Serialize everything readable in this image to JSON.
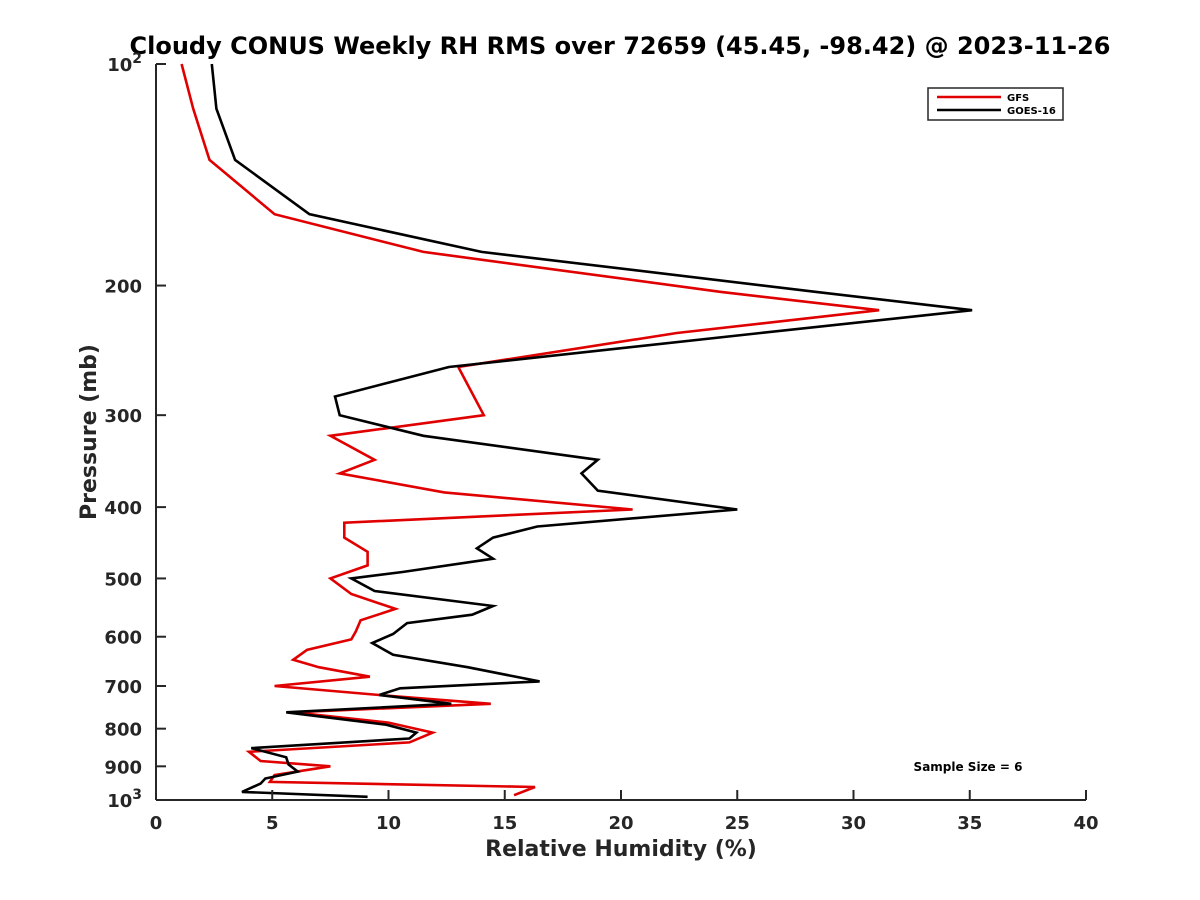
{
  "chart_data": {
    "type": "line",
    "title": "Cloudy CONUS Weekly RH RMS over 72659 (45.45, -98.42) @ 2023-11-26",
    "xlabel": "Relative Humidity (%)",
    "ylabel": "Pressure (mb)",
    "xlim": [
      0,
      40
    ],
    "ylim": [
      100,
      1000
    ],
    "y_scale": "log",
    "y_reversed": true,
    "x_ticks": [
      0,
      5,
      10,
      15,
      20,
      25,
      30,
      35,
      40
    ],
    "y_ticks": [
      {
        "value": 100,
        "base": "10",
        "exp": "2"
      },
      {
        "value": 200,
        "label": "200"
      },
      {
        "value": 300,
        "label": "300"
      },
      {
        "value": 400,
        "label": "400"
      },
      {
        "value": 500,
        "label": "500"
      },
      {
        "value": 600,
        "label": "600"
      },
      {
        "value": 700,
        "label": "700"
      },
      {
        "value": 800,
        "label": "800"
      },
      {
        "value": 900,
        "label": "900"
      },
      {
        "value": 1000,
        "base": "10",
        "exp": "3"
      }
    ],
    "grid": false,
    "legend_position": "top-right",
    "annotation": "Sample Size = 6",
    "series": [
      {
        "name": "GFS",
        "color": "#e00000",
        "points": [
          [
            1.1,
            100
          ],
          [
            1.6,
            115
          ],
          [
            2.3,
            135
          ],
          [
            5.1,
            160
          ],
          [
            11.5,
            180
          ],
          [
            24.3,
            204
          ],
          [
            31.1,
            216
          ],
          [
            22.4,
            232
          ],
          [
            13.0,
            258
          ],
          [
            14.1,
            300
          ],
          [
            7.5,
            320
          ],
          [
            9.4,
            345
          ],
          [
            7.9,
            360
          ],
          [
            12.4,
            382
          ],
          [
            20.5,
            403
          ],
          [
            8.1,
            420
          ],
          [
            8.1,
            440
          ],
          [
            9.1,
            460
          ],
          [
            9.1,
            480
          ],
          [
            7.5,
            500
          ],
          [
            8.4,
            525
          ],
          [
            10.3,
            550
          ],
          [
            8.8,
            570
          ],
          [
            8.6,
            590
          ],
          [
            8.4,
            605
          ],
          [
            6.5,
            625
          ],
          [
            5.9,
            645
          ],
          [
            7.0,
            660
          ],
          [
            9.2,
            680
          ],
          [
            5.1,
            700
          ],
          [
            9.6,
            720
          ],
          [
            14.4,
            740
          ],
          [
            5.9,
            760
          ],
          [
            10.0,
            785
          ],
          [
            11.9,
            810
          ],
          [
            10.9,
            835
          ],
          [
            4.0,
            860
          ],
          [
            4.5,
            885
          ],
          [
            7.5,
            900
          ],
          [
            5.1,
            925
          ],
          [
            4.9,
            945
          ],
          [
            16.3,
            960
          ],
          [
            15.4,
            985
          ]
        ]
      },
      {
        "name": "GOES-16",
        "color": "#000000",
        "points": [
          [
            2.4,
            100
          ],
          [
            2.6,
            115
          ],
          [
            3.4,
            135
          ],
          [
            6.6,
            160
          ],
          [
            14.0,
            180
          ],
          [
            28.4,
            204
          ],
          [
            35.1,
            216
          ],
          [
            26.0,
            232
          ],
          [
            12.6,
            258
          ],
          [
            7.7,
            283
          ],
          [
            7.9,
            300
          ],
          [
            11.5,
            320
          ],
          [
            19.0,
            345
          ],
          [
            18.3,
            360
          ],
          [
            19.0,
            380
          ],
          [
            25.0,
            403
          ],
          [
            16.4,
            425
          ],
          [
            14.5,
            440
          ],
          [
            13.8,
            455
          ],
          [
            14.5,
            470
          ],
          [
            10.6,
            490
          ],
          [
            8.4,
            500
          ],
          [
            9.4,
            520
          ],
          [
            14.5,
            545
          ],
          [
            13.6,
            560
          ],
          [
            10.8,
            575
          ],
          [
            10.2,
            595
          ],
          [
            9.3,
            612
          ],
          [
            10.2,
            635
          ],
          [
            13.4,
            660
          ],
          [
            16.5,
            690
          ],
          [
            10.5,
            705
          ],
          [
            9.6,
            720
          ],
          [
            12.7,
            740
          ],
          [
            5.6,
            760
          ],
          [
            9.9,
            790
          ],
          [
            11.2,
            810
          ],
          [
            10.9,
            825
          ],
          [
            4.1,
            850
          ],
          [
            5.6,
            875
          ],
          [
            5.7,
            895
          ],
          [
            6.1,
            915
          ],
          [
            4.7,
            935
          ],
          [
            4.5,
            950
          ],
          [
            3.7,
            975
          ],
          [
            9.1,
            990
          ]
        ]
      }
    ]
  }
}
